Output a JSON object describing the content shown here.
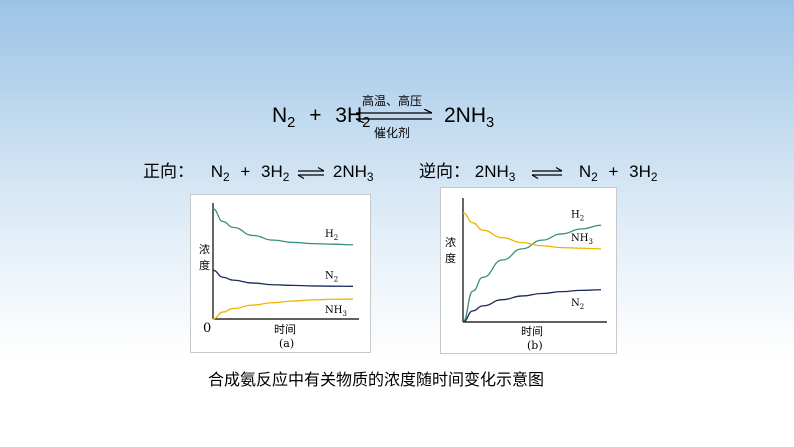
{
  "main_equation": {
    "left_n": "N",
    "left_n_sub": "2",
    "plus": "+",
    "left_h": "3H",
    "left_h_sub": "2",
    "condition_top": "高温、高压",
    "condition_bottom": "催化剂",
    "right": "2NH",
    "right_sub": "3"
  },
  "forward": {
    "label": "正向：",
    "n": "N",
    "n_sub": "2",
    "plus": "+",
    "h": "3H",
    "h_sub": "2",
    "product": "2NH",
    "product_sub": "3"
  },
  "reverse": {
    "label": "逆向：",
    "reactant": "2NH",
    "reactant_sub": "3",
    "n": "N",
    "n_sub": "2",
    "plus": "+",
    "h": "3H",
    "h_sub": "2"
  },
  "chart_data": [
    {
      "type": "line",
      "panel_label": "(a)",
      "xlabel": "时间",
      "ylabel": "浓度",
      "origin_label": "0",
      "x": [
        0,
        0.5,
        1,
        2,
        3,
        4,
        5,
        6,
        7
      ],
      "series": [
        {
          "name": "H2",
          "label_main": "H",
          "label_sub": "2",
          "color": "#3a8e82",
          "values": [
            0.95,
            0.84,
            0.79,
            0.72,
            0.68,
            0.66,
            0.65,
            0.645,
            0.64
          ]
        },
        {
          "name": "N2",
          "label_main": "N",
          "label_sub": "2",
          "color": "#1b2a5e",
          "values": [
            0.42,
            0.36,
            0.335,
            0.31,
            0.295,
            0.29,
            0.285,
            0.283,
            0.282
          ]
        },
        {
          "name": "NH3",
          "label_main": "NH",
          "label_sub": "3",
          "color": "#f0b400",
          "values": [
            0.0,
            0.06,
            0.09,
            0.12,
            0.14,
            0.155,
            0.165,
            0.17,
            0.172
          ]
        }
      ]
    },
    {
      "type": "line",
      "panel_label": "(b)",
      "xlabel": "时间",
      "ylabel": "浓度",
      "x": [
        0,
        0.5,
        1,
        2,
        3,
        4,
        5,
        6,
        7
      ],
      "series": [
        {
          "name": "H2",
          "label_main": "H",
          "label_sub": "2",
          "color": "#3a8e82",
          "values": [
            0.0,
            0.25,
            0.36,
            0.5,
            0.59,
            0.66,
            0.71,
            0.75,
            0.78
          ]
        },
        {
          "name": "NH3",
          "label_main": "NH",
          "label_sub": "3",
          "color": "#f0b400",
          "values": [
            0.88,
            0.8,
            0.74,
            0.68,
            0.64,
            0.615,
            0.6,
            0.595,
            0.59
          ]
        },
        {
          "name": "N2",
          "label_main": "N",
          "label_sub": "2",
          "color": "#1b2a5e",
          "values": [
            0.0,
            0.09,
            0.13,
            0.18,
            0.21,
            0.23,
            0.245,
            0.255,
            0.26
          ]
        }
      ]
    }
  ],
  "caption": "合成氨反应中有关物质的浓度随时间变化示意图"
}
